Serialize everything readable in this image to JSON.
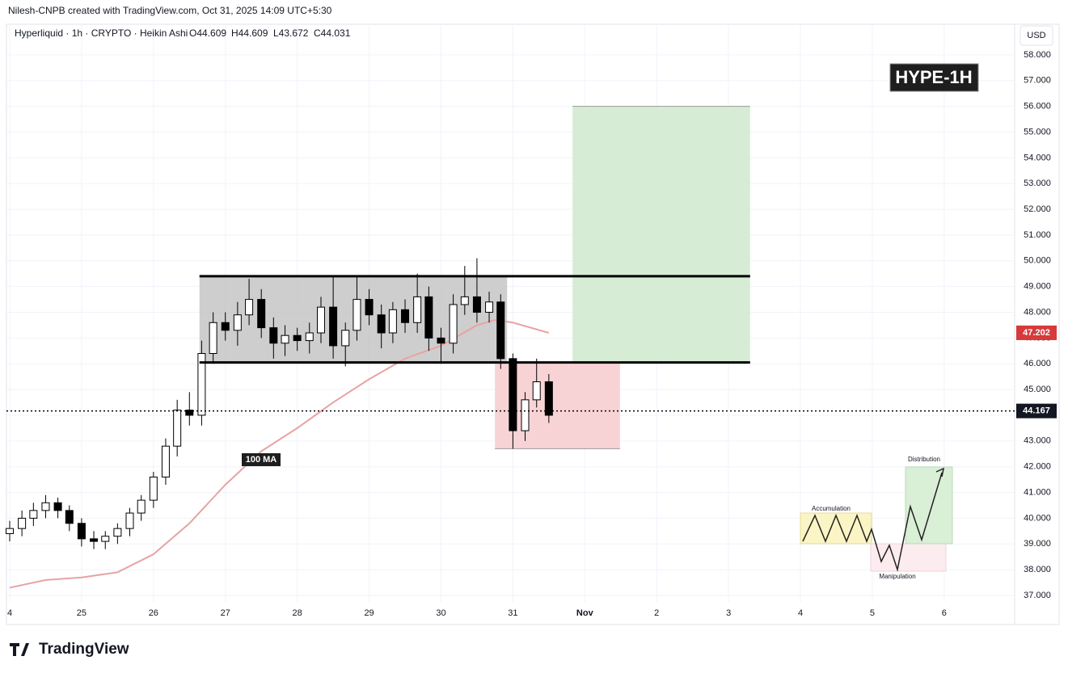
{
  "header": {
    "credit": "Nilesh-CNPB created with TradingView.com, Oct 31, 2025 14:09 UTC+5:30",
    "symbol": "Hyperliquid · 1h · CRYPTO · Heikin Ashi",
    "ohlc": [
      "O44.609",
      "H44.609",
      "L43.672",
      "C44.031"
    ],
    "currency": "USD",
    "badge": "HYPE-1H",
    "logo": "TradingView"
  },
  "inset": {
    "accumulation": "Accumulation",
    "manipulation": "Manipulation",
    "distribution": "Distribution"
  },
  "chart_data": {
    "type": "candlestick",
    "x": [
      24.0,
      24.17,
      24.33,
      24.5,
      24.67,
      24.83,
      25.0,
      25.17,
      25.33,
      25.5,
      25.67,
      25.83,
      26.0,
      26.17,
      26.33,
      26.5,
      26.67,
      26.83,
      27.0,
      27.17,
      27.33,
      27.5,
      27.67,
      27.83,
      28.0,
      28.17,
      28.33,
      28.5,
      28.67,
      28.83,
      29.0,
      29.17,
      29.33,
      29.5,
      29.67,
      29.83,
      30.0,
      30.17,
      30.33,
      30.5,
      30.67,
      30.83,
      31.0,
      31.17,
      31.33,
      31.5
    ],
    "open": [
      39.4,
      39.6,
      40.0,
      40.3,
      40.6,
      40.3,
      39.8,
      39.2,
      39.1,
      39.3,
      39.6,
      40.2,
      40.7,
      41.6,
      42.8,
      44.2,
      44.0,
      46.4,
      47.6,
      47.3,
      47.9,
      48.5,
      47.4,
      46.8,
      47.1,
      46.9,
      47.2,
      48.2,
      46.7,
      47.3,
      48.5,
      47.9,
      47.2,
      48.1,
      47.6,
      48.6,
      47.0,
      46.8,
      48.3,
      48.6,
      48.0,
      48.4,
      46.2,
      43.4,
      44.6,
      45.3
    ],
    "high": [
      39.9,
      40.3,
      40.6,
      40.9,
      40.8,
      40.5,
      40.0,
      39.5,
      39.5,
      39.8,
      40.4,
      40.9,
      41.8,
      43.1,
      44.6,
      44.9,
      46.9,
      48.0,
      48.0,
      48.4,
      49.3,
      48.9,
      47.8,
      47.5,
      47.4,
      47.6,
      48.6,
      49.4,
      47.6,
      49.4,
      48.9,
      48.3,
      48.4,
      48.5,
      49.5,
      49.0,
      47.4,
      48.7,
      49.8,
      50.1,
      48.8,
      48.7,
      46.4,
      44.9,
      46.2,
      45.6
    ],
    "low": [
      39.1,
      39.3,
      39.7,
      40.0,
      40.0,
      39.5,
      38.9,
      38.8,
      38.8,
      39.0,
      39.3,
      39.9,
      40.4,
      41.3,
      42.4,
      43.6,
      43.6,
      46.0,
      46.9,
      46.7,
      47.5,
      47.0,
      46.2,
      46.3,
      46.5,
      46.4,
      46.8,
      46.2,
      45.9,
      46.9,
      47.5,
      46.6,
      46.8,
      47.2,
      47.2,
      46.5,
      46.0,
      46.4,
      47.9,
      47.6,
      47.6,
      45.8,
      42.7,
      43.0,
      44.3,
      43.7
    ],
    "close": [
      39.6,
      40.0,
      40.3,
      40.6,
      40.3,
      39.8,
      39.2,
      39.1,
      39.3,
      39.6,
      40.2,
      40.7,
      41.6,
      42.8,
      44.2,
      44.0,
      46.4,
      47.6,
      47.3,
      47.9,
      48.5,
      47.4,
      46.8,
      47.1,
      46.9,
      47.2,
      48.2,
      46.7,
      47.3,
      48.5,
      47.9,
      47.2,
      48.1,
      47.6,
      48.6,
      47.0,
      46.8,
      48.3,
      48.6,
      48.0,
      48.4,
      46.2,
      43.4,
      44.6,
      45.3,
      44.0
    ],
    "up_color": "#ffffff",
    "down_color": "#000000",
    "ma": {
      "name": "100 MA",
      "color": "#e8a3a3",
      "x": [
        24.0,
        24.5,
        25.0,
        25.5,
        26.0,
        26.5,
        27.0,
        27.5,
        28.0,
        28.5,
        29.0,
        29.5,
        30.0,
        30.5,
        30.75,
        31.0,
        31.5
      ],
      "values": [
        37.3,
        37.6,
        37.7,
        37.9,
        38.6,
        39.8,
        41.3,
        42.6,
        43.5,
        44.5,
        45.4,
        46.2,
        46.7,
        47.5,
        47.7,
        47.6,
        47.2
      ]
    },
    "ma_last": 47.202,
    "last_price": 44.167,
    "range_box": {
      "x": [
        26.64,
        30.92
      ],
      "y": [
        46.0,
        49.4
      ],
      "color": "#bdbdbd"
    },
    "range_lines": {
      "x": [
        26.64,
        34.3
      ],
      "y": [
        49.4,
        46.05
      ]
    },
    "target_box": {
      "x": [
        31.83,
        34.3
      ],
      "y": [
        46.05,
        56.0
      ],
      "color": "#d6ecd4"
    },
    "stop_box": {
      "x": [
        30.75,
        32.49
      ],
      "y": [
        42.7,
        46.05
      ],
      "color": "#f8d3d5"
    },
    "xlim": [
      23.955,
      37.98
    ],
    "ylim": [
      35.87,
      59.19
    ],
    "xticks": [
      {
        "value": 24,
        "label": "4"
      },
      25,
      26,
      27,
      28,
      29,
      30,
      31,
      {
        "value": 32,
        "label": "Nov"
      },
      {
        "value": 33,
        "label": "2"
      },
      {
        "value": 34,
        "label": "3"
      },
      {
        "value": 35,
        "label": "4"
      },
      {
        "value": 36,
        "label": "5"
      },
      {
        "value": 37,
        "label": "6"
      }
    ],
    "yticks": [
      {
        "value": 37,
        "label": "37.000"
      },
      {
        "value": 38,
        "label": "38.000"
      },
      {
        "value": 39,
        "label": "39.000"
      },
      {
        "value": 40,
        "label": "40.000"
      },
      {
        "value": 41,
        "label": "41.000"
      },
      {
        "value": 42,
        "label": "42.000"
      },
      {
        "value": 43,
        "label": "43.000"
      },
      {
        "value": 44,
        "label": "44.000"
      },
      {
        "value": 45,
        "label": "45.000"
      },
      {
        "value": 46,
        "label": "46.000"
      },
      {
        "value": 47,
        "label": "47.000"
      },
      {
        "value": 48,
        "label": "48.000"
      },
      {
        "value": 49,
        "label": "49.000"
      },
      {
        "value": 50,
        "label": "50.000"
      },
      {
        "value": 51,
        "label": "51.000"
      },
      {
        "value": 52,
        "label": "52.000"
      },
      {
        "value": 53,
        "label": "53.000"
      },
      {
        "value": 54,
        "label": "54.000"
      },
      {
        "value": 55,
        "label": "55.000"
      },
      {
        "value": 56,
        "label": "56.000"
      },
      {
        "value": 57,
        "label": "57.000"
      },
      {
        "value": 58,
        "label": "58.000"
      }
    ],
    "grid": true
  }
}
